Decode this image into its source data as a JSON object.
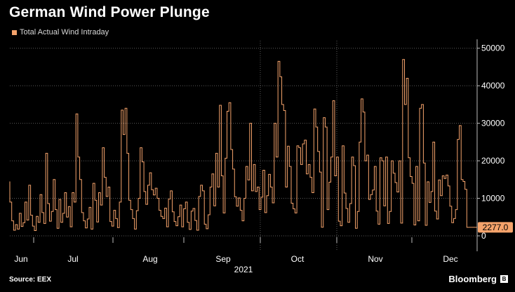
{
  "title": "German Wind Power Plunge",
  "legend_label": "Total Actual Wind Intraday",
  "source": "Source: EEX",
  "brand": "Bloomberg",
  "colors": {
    "background": "#000000",
    "series": "#f5a36b",
    "grid": "#5a5a5a",
    "text": "#ffffff",
    "badge_text": "#000000"
  },
  "chart_data": {
    "type": "line",
    "title": "German Wind Power Plunge",
    "xlabel": "2021",
    "ylabel": "",
    "ylim": [
      0,
      52000
    ],
    "yticks": [
      0,
      10000,
      20000,
      30000,
      40000,
      50000
    ],
    "ytick_labels": [
      "0",
      "10000",
      "20000",
      "30000",
      "40000",
      "50000"
    ],
    "xtick_labels": [
      "Jun",
      "Jul",
      "Aug",
      "Sep",
      "Oct",
      "Nov",
      "Dec"
    ],
    "year_label": "2021",
    "last_value_label": "2277.0",
    "series": [
      {
        "name": "Total Actual Wind Intraday",
        "color": "#f5a36b",
        "values": [
          14500,
          9000,
          4000,
          1500,
          3000,
          1800,
          6000,
          2500,
          3500,
          9000,
          4200,
          13500,
          5500,
          2600,
          1400,
          5200,
          3600,
          11000,
          6200,
          3300,
          22000,
          8600,
          3900,
          6500,
          15000,
          7000,
          2000,
          9700,
          3600,
          6000,
          11500,
          5000,
          7800,
          2400,
          11500,
          9000,
          32500,
          21000,
          15000,
          6200,
          4000,
          2100,
          4500,
          7600,
          1800,
          14000,
          9500,
          3700,
          11500,
          8200,
          23500,
          15600,
          10500,
          13000,
          3800,
          2600,
          6800,
          4600,
          2200,
          9000,
          33500,
          27000,
          34000,
          22000,
          9500,
          7000,
          4600,
          1800,
          6700,
          10000,
          23500,
          19700,
          11800,
          8400,
          13500,
          16800,
          12300,
          10900,
          12700,
          10000,
          6800,
          5200,
          4600,
          7400,
          2400,
          9800,
          12000,
          6400,
          3800,
          2700,
          5100,
          8200,
          2400,
          7200,
          9000,
          3600,
          1700,
          6600,
          7300,
          4100,
          1500,
          10500,
          13500,
          12000,
          3100,
          1900,
          5600,
          13000,
          16500,
          8000,
          22000,
          13000,
          34800,
          16000,
          6100,
          20700,
          33200,
          35500,
          23000,
          17800,
          10400,
          7900,
          10100,
          6800,
          4000,
          10000,
          18500,
          14900,
          30000,
          12000,
          19000,
          11800,
          13000,
          7000,
          10300,
          17500,
          6200,
          10700,
          16400,
          13000,
          8800,
          30000,
          21000,
          46500,
          42400,
          35000,
          33400,
          13000,
          23900,
          18500,
          8700,
          7200,
          6100,
          24000,
          23500,
          19000,
          24500,
          25500,
          16500,
          19000,
          15600,
          11500,
          33800,
          29000,
          22500,
          17000,
          2300,
          31500,
          29000,
          7000,
          14300,
          21000,
          36000,
          16000,
          21000,
          3900,
          2700,
          24000,
          11400,
          7300,
          3600,
          8600,
          21000,
          18700,
          2000,
          6500,
          25000,
          36500,
          33000,
          20000,
          21500,
          9700,
          11000,
          12200,
          18500,
          6600,
          3100,
          20800,
          20000,
          8000,
          21000,
          3300,
          6500,
          20000,
          16700,
          14200,
          11700,
          20000,
          3400,
          47000,
          35000,
          42000,
          20800,
          15800,
          14000,
          2900,
          18500,
          4000,
          34000,
          35000,
          19400,
          2800,
          14400,
          8900,
          11800,
          25000,
          6600,
          4500,
          14900,
          10700,
          16000,
          15300,
          16200,
          13300,
          7900,
          3500,
          4600,
          7000,
          25700,
          29400,
          15000,
          14500,
          12400,
          2277
        ]
      }
    ]
  }
}
